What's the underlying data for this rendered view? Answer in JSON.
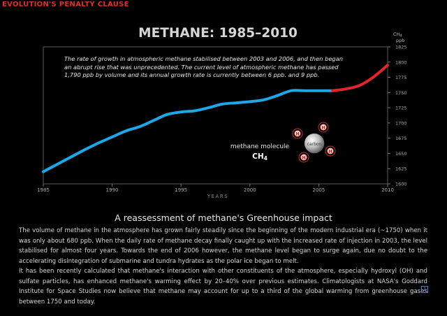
{
  "header": {
    "label": "EVOLUTION'S PENALTY CLAUSE"
  },
  "chart_data": {
    "type": "line",
    "title": "METHANE: 1985–2010",
    "xlabel": "YEARS",
    "ylabel_line1": "CH",
    "ylabel_sub": "4",
    "ylabel_line2": "ppb",
    "xlim": [
      1985,
      2010
    ],
    "ylim": [
      1600,
      1825
    ],
    "x_ticks": [
      1985,
      1990,
      1995,
      2000,
      2005,
      2010
    ],
    "y_ticks": [
      1600,
      1625,
      1650,
      1675,
      1700,
      1725,
      1750,
      1775,
      1800,
      1825
    ],
    "grid": false,
    "annotation": "The rate of growth in atmospheric methane stabilised between 2003 and 2006, and then began an abrupt rise that was unprecedented. The current level of atmospheric methane has passed 1,790 ppb by volume and its annual growth rate is currently between 6 ppb. and 9 ppb.",
    "molecule_label": "methane molecule",
    "molecule_formula_main": "CH",
    "molecule_formula_sub": "4",
    "molecule_center": "carbon",
    "molecule_atom": "H",
    "colors": {
      "stable": "#1ea6e6",
      "rise": "#e0262c"
    },
    "series": [
      {
        "color": "#1ea6e6",
        "x": [
          1985,
          1986,
          1987,
          1988,
          1989,
          1990,
          1991,
          1992,
          1993,
          1994,
          1995,
          1996,
          1997,
          1998,
          1999,
          2000,
          2001,
          2002,
          2003,
          2004,
          2005,
          2006
        ],
        "y": [
          1620,
          1632,
          1644,
          1656,
          1667,
          1677,
          1687,
          1694,
          1704,
          1714,
          1718,
          1720,
          1725,
          1731,
          1733,
          1735,
          1738,
          1745,
          1753,
          1753,
          1753,
          1753
        ]
      },
      {
        "color": "#e0262c",
        "x": [
          2006,
          2007,
          2008,
          2009,
          2010
        ],
        "y": [
          1753,
          1756,
          1762,
          1776,
          1795
        ]
      }
    ]
  },
  "article": {
    "heading": "A reassessment of methane's Greenhouse impact",
    "paragraph_1": "The volume of methane in the atmosphere has grown fairly steadily since the beginning of the modern industrial era (~1750) when it was only about 680 ppb. When the daily rate of methane decay finally caught up with the increased rate of injection in 2003, the level stabilised for almost four years. Towards the end of 2006 however, the methane level began to surge again, due no doubt to the accelerating disintegration of submarine and tundra hydrates as the polar ice began to melt.",
    "paragraph_2": "It has been recently calculated that methane's interaction with other constituents of the atmosphere, especially hydroxyl (OH) and sulfate particles, has enhanced methane's warming effect by 20–40% over previous estimates. Climatologists at NASA's Goddard Institute for Space Studies now believe that methane may account for up to a third of the global warming from greenhouse gases between 1750 and today.",
    "info_icon": "?"
  }
}
